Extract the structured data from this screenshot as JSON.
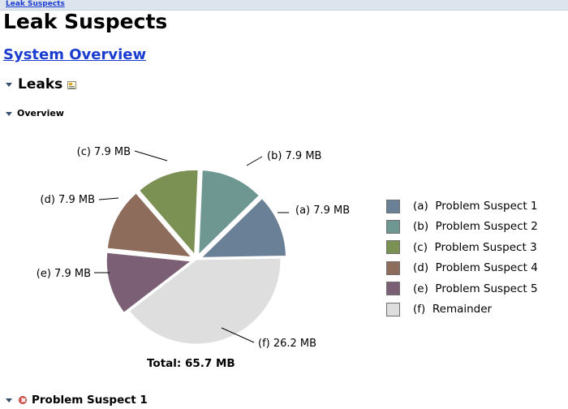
{
  "breadcrumb": {
    "label": "Leak Suspects"
  },
  "page": {
    "title": "Leak Suspects",
    "system_overview_link": "System Overview"
  },
  "leaks_section": {
    "title": "Leaks",
    "details_icon": "details-icon",
    "overview_title": "Overview"
  },
  "chart_data": {
    "type": "pie",
    "title": "",
    "unit": "MB",
    "total_label": "Total: 65.7 MB",
    "slices": [
      {
        "key": "a",
        "name": "Problem Suspect 1",
        "value": 7.9,
        "label": "(a)  7.9 MB",
        "legend": "(a)  Problem Suspect 1",
        "color": "#6a8096",
        "exploded": true
      },
      {
        "key": "b",
        "name": "Problem Suspect 2",
        "value": 7.9,
        "label": "(b)  7.9 MB",
        "legend": "(b)  Problem Suspect 2",
        "color": "#6e9792",
        "exploded": true
      },
      {
        "key": "c",
        "name": "Problem Suspect 3",
        "value": 7.9,
        "label": "(c)  7.9 MB",
        "legend": "(c)  Problem Suspect 3",
        "color": "#7b9154",
        "exploded": true
      },
      {
        "key": "d",
        "name": "Problem Suspect 4",
        "value": 7.9,
        "label": "(d)  7.9 MB",
        "legend": "(d)  Problem Suspect 4",
        "color": "#8d6c5c",
        "exploded": true
      },
      {
        "key": "e",
        "name": "Problem Suspect 5",
        "value": 7.9,
        "label": "(e)  7.9 MB",
        "legend": "(e)  Problem Suspect 5",
        "color": "#7b5f74",
        "exploded": true
      },
      {
        "key": "f",
        "name": "Remainder",
        "value": 26.2,
        "label": "(f)  26.2 MB",
        "legend": "(f)  Remainder",
        "color": "#dedede",
        "exploded": false
      }
    ]
  },
  "problem_suspect": {
    "title": "Problem Suspect 1",
    "status_icon": "error-icon"
  }
}
